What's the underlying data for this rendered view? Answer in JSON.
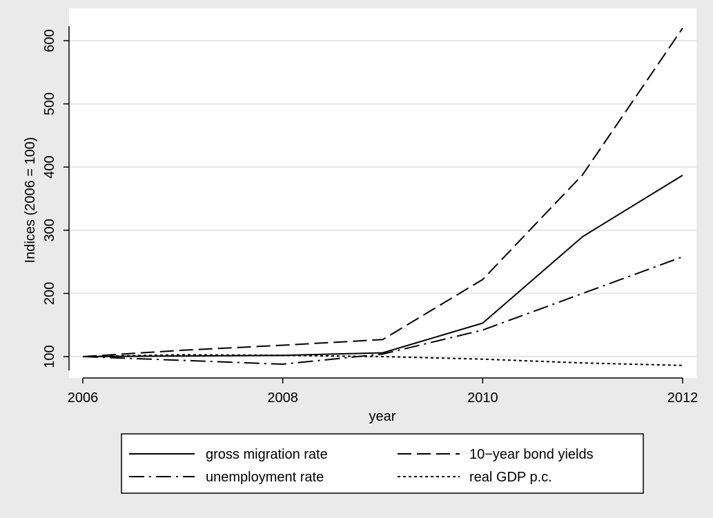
{
  "chart_data": {
    "type": "line",
    "title": "",
    "xlabel": "year",
    "ylabel": "Indices (2006 = 100)",
    "xlim": [
      2006,
      2012
    ],
    "ylim": [
      80,
      640
    ],
    "x_ticks": [
      2006,
      2008,
      2010,
      2012
    ],
    "x_tick_labels": [
      "2006",
      "2008",
      "2010",
      "2012"
    ],
    "y_ticks": [
      100,
      200,
      300,
      400,
      500,
      600
    ],
    "y_tick_labels": [
      "100",
      "200",
      "300",
      "400",
      "500",
      "600"
    ],
    "grid": "horizontal",
    "legend_placement": "bottom",
    "x": [
      2006,
      2007,
      2008,
      2009,
      2010,
      2011,
      2012
    ],
    "series": [
      {
        "name": "gross migration rate",
        "style": "solid",
        "values": [
          100,
          101,
          102,
          106,
          153,
          290,
          387
        ]
      },
      {
        "name": "10−year bond yields",
        "style": "dash",
        "values": [
          100,
          110,
          118,
          127,
          222,
          388,
          620
        ]
      },
      {
        "name": "unemployment rate",
        "style": "dashdot",
        "values": [
          100,
          94,
          88,
          104,
          142,
          200,
          258
        ]
      },
      {
        "name": "real GDP p.c.",
        "style": "dot",
        "values": [
          100,
          103,
          102,
          100,
          96,
          90,
          86
        ]
      }
    ],
    "colors": {
      "background": "#eaeaea",
      "plot_background": "#ffffff",
      "grid": "#e6e6e6",
      "line": "#000000"
    }
  }
}
